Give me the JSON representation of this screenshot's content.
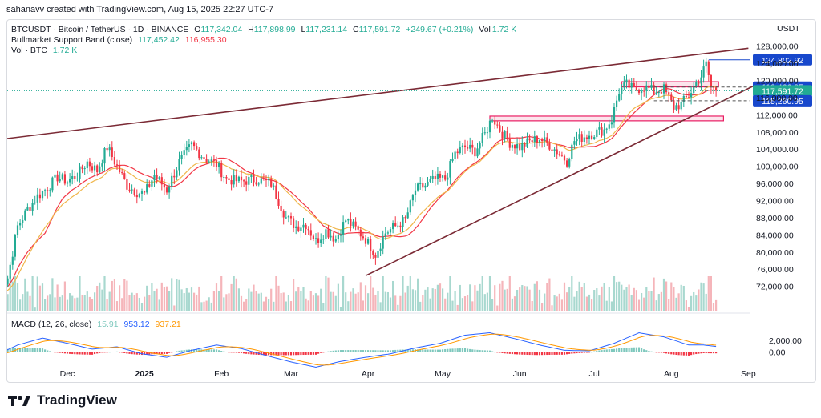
{
  "header": {
    "text": "sahanavv created with TradingView.com, Aug 15, 2025 22:27 UTC-7"
  },
  "legend": {
    "symbol": "BTCUSDT · Bitcoin / TetherUS · 1D · BINANCE",
    "o_label": "O",
    "o_value": "117,342.04",
    "h_label": "H",
    "h_value": "117,898.99",
    "l_label": "L",
    "l_value": "117,231.14",
    "c_label": "C",
    "c_value": "117,591.72",
    "change": "+249.67 (+0.21%)",
    "vol_label": "Vol",
    "vol_value": "1.72 K",
    "band_label": "Bullmarket Support Band (close)",
    "band_v1": "117,452.42",
    "band_v2": "116,955.30",
    "volume_label": "Vol · BTC",
    "volume_value": "1.72 K",
    "macd_label": "MACD (12, 26, close)",
    "macd_hist": "15.91",
    "macd_line": "953.12",
    "macd_signal": "937.21"
  },
  "footer": {
    "brand": "TradingView"
  },
  "colors": {
    "up": "#22ab94",
    "down": "#f23645",
    "trend": "#7b2a35",
    "zone": "#e91e63",
    "sma": "#f23645",
    "ema": "#f0b64a",
    "macd": "#2962ff",
    "signal": "#ff9800",
    "price_tag": "#1848cc"
  },
  "chart_data": {
    "type": "candlestick",
    "currency": "USDT",
    "y_ticks": [
      "128,000.00",
      "124,000.00",
      "120,000.00",
      "116,000.00",
      "112,000.00",
      "108,000.00",
      "104,000.00",
      "100,000.00",
      "96,000.00",
      "92,000.00",
      "88,000.00",
      "84,000.00",
      "80,000.00",
      "76,000.00",
      "72,000.00"
    ],
    "ylim": [
      69700,
      129800
    ],
    "x_ticks": [
      {
        "label": "Dec",
        "day": 0,
        "bold": false
      },
      {
        "label": "2025",
        "day": 31,
        "bold": true
      },
      {
        "label": "Feb",
        "day": 62,
        "bold": false
      },
      {
        "label": "Mar",
        "day": 90,
        "bold": false
      },
      {
        "label": "Apr",
        "day": 121,
        "bold": false
      },
      {
        "label": "May",
        "day": 151,
        "bold": false
      },
      {
        "label": "Jun",
        "day": 182,
        "bold": false
      },
      {
        "label": "Jul",
        "day": 212,
        "bold": false
      },
      {
        "label": "Aug",
        "day": 243,
        "bold": false
      },
      {
        "label": "Sep",
        "day": 274,
        "bold": false
      }
    ],
    "price_path": [
      [
        -28,
        70500
      ],
      [
        -24,
        74000
      ],
      [
        -20,
        86000
      ],
      [
        -16,
        90000
      ],
      [
        -12,
        93000
      ],
      [
        -8,
        95000
      ],
      [
        -4,
        97500
      ],
      [
        0,
        96500
      ],
      [
        4,
        98000
      ],
      [
        8,
        101000
      ],
      [
        12,
        99000
      ],
      [
        16,
        104500
      ],
      [
        20,
        100000
      ],
      [
        24,
        95500
      ],
      [
        28,
        94000
      ],
      [
        31,
        93500
      ],
      [
        35,
        98000
      ],
      [
        40,
        94500
      ],
      [
        45,
        101000
      ],
      [
        50,
        105000
      ],
      [
        55,
        102000
      ],
      [
        60,
        100500
      ],
      [
        64,
        97000
      ],
      [
        70,
        96500
      ],
      [
        76,
        97000
      ],
      [
        82,
        96000
      ],
      [
        88,
        88000
      ],
      [
        92,
        86000
      ],
      [
        96,
        86500
      ],
      [
        100,
        82500
      ],
      [
        104,
        85000
      ],
      [
        108,
        83000
      ],
      [
        112,
        87500
      ],
      [
        116,
        85500
      ],
      [
        120,
        83000
      ],
      [
        124,
        79500
      ],
      [
        128,
        84500
      ],
      [
        132,
        86000
      ],
      [
        136,
        87500
      ],
      [
        140,
        94500
      ],
      [
        144,
        95500
      ],
      [
        148,
        97000
      ],
      [
        152,
        97000
      ],
      [
        156,
        103000
      ],
      [
        160,
        104500
      ],
      [
        164,
        103500
      ],
      [
        168,
        107500
      ],
      [
        171,
        111500
      ],
      [
        174,
        108500
      ],
      [
        178,
        105500
      ],
      [
        182,
        104500
      ],
      [
        186,
        105800
      ],
      [
        190,
        106500
      ],
      [
        194,
        105000
      ],
      [
        198,
        103000
      ],
      [
        201,
        101200
      ],
      [
        204,
        106000
      ],
      [
        208,
        107000
      ],
      [
        212,
        107800
      ],
      [
        216,
        108500
      ],
      [
        219,
        111000
      ],
      [
        222,
        117500
      ],
      [
        225,
        119000
      ],
      [
        228,
        117800
      ],
      [
        232,
        118500
      ],
      [
        236,
        117500
      ],
      [
        240,
        118000
      ],
      [
        244,
        113800
      ],
      [
        247,
        114500
      ],
      [
        250,
        116500
      ],
      [
        253,
        119500
      ],
      [
        255,
        121000
      ],
      [
        257,
        123800
      ],
      [
        259,
        118500
      ],
      [
        261,
        117591.72
      ]
    ],
    "resistance_line": {
      "from": [
        -28,
        106200
      ],
      "to": [
        274,
        127500
      ]
    },
    "support_line": {
      "from": [
        120,
        74500
      ],
      "to": [
        276,
        118700
      ]
    },
    "zones": [
      {
        "from_day": 170,
        "to_day": 264,
        "low": 110600,
        "high": 111700
      },
      {
        "from_day": 223,
        "to_day": 262,
        "low": 118500,
        "high": 119700
      }
    ],
    "levels": [
      {
        "value": "124,802.92",
        "price": 124802.92,
        "style": "solid",
        "tag": "dark",
        "from_day": 258
      },
      {
        "value": "118,466.85",
        "price": 118466.85,
        "style": "dashed",
        "tag": "dark",
        "from_day": 236
      },
      {
        "value": "117,591.72",
        "price": 117591.72,
        "style": "dotted",
        "tag": "green",
        "from_day": -40
      },
      {
        "value": "115,260.95",
        "price": 115260.95,
        "style": "dashed",
        "tag": "dark",
        "from_day": 236
      }
    ],
    "macd_ticks": [
      "2,000.00",
      "0.00"
    ],
    "macd_path": [
      [
        -28,
        -400
      ],
      [
        -20,
        1200
      ],
      [
        -10,
        2400
      ],
      [
        0,
        1500
      ],
      [
        10,
        500
      ],
      [
        20,
        900
      ],
      [
        30,
        -300
      ],
      [
        40,
        -900
      ],
      [
        50,
        300
      ],
      [
        60,
        1200
      ],
      [
        70,
        600
      ],
      [
        80,
        -600
      ],
      [
        90,
        -1700
      ],
      [
        100,
        -2600
      ],
      [
        110,
        -1600
      ],
      [
        120,
        -900
      ],
      [
        130,
        -300
      ],
      [
        140,
        700
      ],
      [
        150,
        1500
      ],
      [
        160,
        2900
      ],
      [
        170,
        3300
      ],
      [
        180,
        2300
      ],
      [
        190,
        1200
      ],
      [
        200,
        300
      ],
      [
        210,
        200
      ],
      [
        220,
        1500
      ],
      [
        230,
        3300
      ],
      [
        240,
        2600
      ],
      [
        250,
        1200
      ],
      [
        256,
        1200
      ],
      [
        261,
        953
      ]
    ],
    "macd_ylim": [
      -3500,
      4200
    ]
  }
}
